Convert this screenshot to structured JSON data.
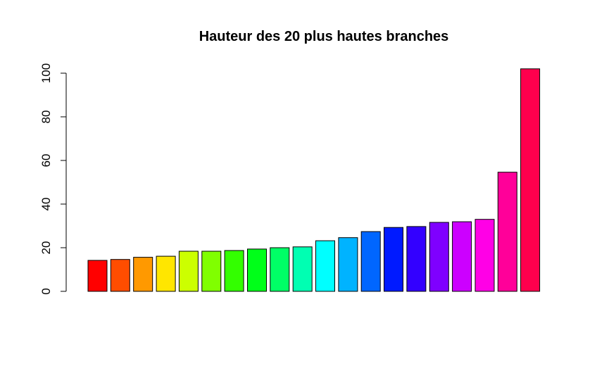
{
  "chart_data": {
    "type": "bar",
    "title": "Hauteur des 20 plus hautes branches",
    "xlabel": "",
    "ylabel": "",
    "ylim": [
      0,
      100
    ],
    "y_ticks": [
      "0",
      "20",
      "40",
      "60",
      "80",
      "100"
    ],
    "values": [
      14.2,
      14.6,
      15.6,
      16.1,
      18.4,
      18.4,
      18.7,
      19.4,
      20.0,
      20.4,
      23.2,
      24.6,
      27.4,
      29.3,
      29.7,
      31.6,
      31.9,
      33.0,
      54.6,
      102.0
    ],
    "colors": [
      "#FF0000",
      "#FF4D00",
      "#FF9900",
      "#FFE600",
      "#CCFF00",
      "#80FF00",
      "#33FF00",
      "#00FF19",
      "#00FF66",
      "#00FFB2",
      "#00FFFF",
      "#00B3FF",
      "#0066FF",
      "#001AFF",
      "#3300FF",
      "#7F00FF",
      "#CC00FF",
      "#FF00E6",
      "#FF0099",
      "#FF004D"
    ],
    "grid": false,
    "legend": "none"
  }
}
